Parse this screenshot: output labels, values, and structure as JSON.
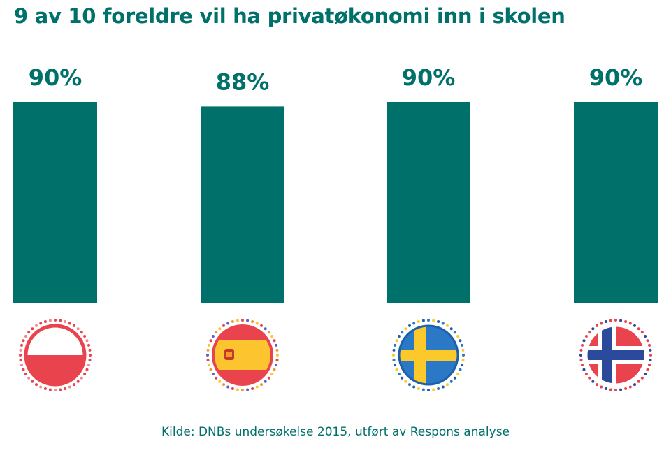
{
  "title": "9 av 10 foreldre vil ha privatøkonomi inn i skolen",
  "source": "Kilde: DNBs undersøkelse 2015, utført av Respons analyse",
  "colors": {
    "bar": "#00706b",
    "label": "#00706b"
  },
  "chart_data": {
    "type": "bar",
    "title": "9 av 10 foreldre vil ha privatøkonomi inn i skolen",
    "categories": [
      "Polen",
      "Spania",
      "Sverige",
      "Norge"
    ],
    "category_display": "flag icons",
    "values": [
      90,
      88,
      90,
      90
    ],
    "value_labels": [
      "90%",
      "88%",
      "90%",
      "90%"
    ],
    "unit": "%",
    "xlabel": "",
    "ylabel": "",
    "grid": false,
    "flags": [
      "poland-flag-icon",
      "spain-flag-icon",
      "sweden-flag-icon",
      "norway-flag-icon"
    ]
  }
}
